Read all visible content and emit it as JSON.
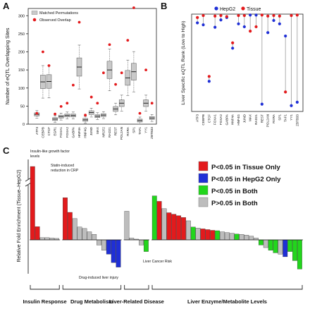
{
  "panels": {
    "a": "A",
    "b": "B",
    "c": "C"
  },
  "chart_data": [
    {
      "type": "scatter",
      "panel": "A",
      "ylabel": "Number of eQTL Overlapping Sites",
      "ylim": [
        0,
        320
      ],
      "yticks": [
        0,
        50,
        100,
        150,
        200,
        250,
        300
      ],
      "categories": [
        "ATF3",
        "CEBPB",
        "CTCF",
        "EGR1",
        "FOXA1",
        "FOXA2",
        "GABPA",
        "HNF4A",
        "HNF4G",
        "JUND",
        "MAX",
        "NR2F2",
        "RAD21",
        "REST",
        "POL2AN",
        "RXRA",
        "SP1",
        "TAF1",
        "YY1",
        "ZBTB33"
      ],
      "legend": [
        "Matched Permutations",
        "Observed Overlap"
      ],
      "permutation_median": [
        27,
        117,
        118,
        14,
        21,
        24,
        24,
        158,
        12,
        32,
        22,
        25,
        150,
        42,
        58,
        128,
        145,
        10,
        58,
        17
      ],
      "observed_overlap": [
        30,
        200,
        162,
        28,
        49,
        58,
        108,
        282,
        25,
        75,
        58,
        142,
        220,
        110,
        142,
        232,
        322,
        30,
        150,
        58
      ],
      "colors": {
        "box": "#c9c9c9",
        "observed": "#e31a1c"
      },
      "grid": false,
      "legend_position": "top-left"
    },
    {
      "type": "scatter",
      "panel": "B",
      "ylabel": "Liver Specific eQTL Rank (Low to High)",
      "categories": [
        "ATF3",
        "CEBPB",
        "CTCF",
        "FOXA1",
        "FOXA2",
        "GABPA",
        "HNF4A",
        "HNF4G",
        "JUND",
        "MAX",
        "RAD21",
        "REST",
        "POL2AN",
        "RXRA",
        "SP1",
        "TAF1",
        "YY1",
        "ZBTB33"
      ],
      "ylim": [
        0,
        20
      ],
      "series": [
        {
          "name": "HepG2",
          "values": [
            18.2,
            17.8,
            6.2,
            17.3,
            18.8,
            19.3,
            13.0,
            18.0,
            17.4,
            19.8,
            19.8,
            1.5,
            16.2,
            18.7,
            18.0,
            15.5,
            1.2,
            1.9
          ]
        },
        {
          "name": "Tissue",
          "values": [
            19.3,
            19.7,
            7.2,
            19.6,
            19.7,
            19.5,
            14.1,
            19.7,
            19.7,
            16.5,
            17.4,
            19.8,
            19.6,
            19.7,
            19.6,
            4.0,
            19.7,
            19.8
          ]
        }
      ],
      "colors": {
        "HepG2": "#1f2fd6",
        "Tissue": "#e31a1c"
      },
      "legend_position": "top"
    },
    {
      "type": "bar",
      "panel": "C",
      "ylabel": "Relative Fold Enrichment (Tissue–HepG2)",
      "legend": [
        {
          "label": "P<0.05 in Tissue Only",
          "color": "#e31a1c"
        },
        {
          "label": "P<0.05 in HepG2 Only",
          "color": "#1f2fd6"
        },
        {
          "label": "P<0.05 in Both",
          "color": "#22d61c"
        },
        {
          "label": "P>0.05 in Both",
          "color": "#bdbdbd"
        }
      ],
      "groups": [
        {
          "name": "Insulin Response",
          "bars": [
            {
              "value": 20.0,
              "cls": "tissue"
            },
            {
              "value": 3.6,
              "cls": "tissue"
            },
            {
              "value": 0.6,
              "cls": "none"
            },
            {
              "value": 0.6,
              "cls": "none"
            },
            {
              "value": 0.5,
              "cls": "none"
            },
            {
              "value": 0.4,
              "cls": "none"
            }
          ]
        },
        {
          "name": "Drug Metabolism",
          "bars": [
            {
              "value": 11.5,
              "cls": "tissue"
            },
            {
              "value": 7.5,
              "cls": "tissue"
            },
            {
              "value": 5.8,
              "cls": "none"
            },
            {
              "value": 3.5,
              "cls": "none"
            },
            {
              "value": 3.1,
              "cls": "none"
            },
            {
              "value": 2.2,
              "cls": "none"
            },
            {
              "value": 1.5,
              "cls": "none"
            },
            {
              "value": -0.8,
              "cls": "none"
            },
            {
              "value": -1.6,
              "cls": "none"
            },
            {
              "value": -2.2,
              "cls": "hepg2"
            },
            {
              "value": -3.5,
              "cls": "hepg2"
            },
            {
              "value": -4.2,
              "cls": "hepg2"
            }
          ]
        },
        {
          "name": "Liver-Related Disease",
          "bars": [
            {
              "value": 7.8,
              "cls": "none"
            },
            {
              "value": 0.5,
              "cls": "none"
            },
            {
              "value": 0.2,
              "cls": "none"
            },
            {
              "value": -0.8,
              "cls": "none"
            },
            {
              "value": -1.8,
              "cls": "both"
            }
          ]
        },
        {
          "name": "Liver Enzyme/Metabolite Levels",
          "bars": [
            {
              "value": 12.0,
              "cls": "both"
            },
            {
              "value": 10.5,
              "cls": "tissue"
            },
            {
              "value": 8.5,
              "cls": "none"
            },
            {
              "value": 7.4,
              "cls": "tissue"
            },
            {
              "value": 7.0,
              "cls": "tissue"
            },
            {
              "value": 6.6,
              "cls": "tissue"
            },
            {
              "value": 6.1,
              "cls": "tissue"
            },
            {
              "value": 5.2,
              "cls": "none"
            },
            {
              "value": 3.5,
              "cls": "both"
            },
            {
              "value": 3.2,
              "cls": "none"
            },
            {
              "value": 3.0,
              "cls": "tissue"
            },
            {
              "value": 2.8,
              "cls": "tissue"
            },
            {
              "value": 2.6,
              "cls": "tissue"
            },
            {
              "value": 2.5,
              "cls": "both"
            },
            {
              "value": 2.2,
              "cls": "none"
            },
            {
              "value": 2.0,
              "cls": "none"
            },
            {
              "value": 1.8,
              "cls": "none"
            },
            {
              "value": 1.6,
              "cls": "both"
            },
            {
              "value": 1.5,
              "cls": "none"
            },
            {
              "value": 1.3,
              "cls": "none"
            },
            {
              "value": 1.0,
              "cls": "none"
            },
            {
              "value": 0.5,
              "cls": "none"
            },
            {
              "value": -0.8,
              "cls": "both"
            },
            {
              "value": -1.2,
              "cls": "none"
            },
            {
              "value": -1.6,
              "cls": "both"
            },
            {
              "value": -2.0,
              "cls": "both"
            },
            {
              "value": -2.2,
              "cls": "none"
            },
            {
              "value": -2.6,
              "cls": "hepg2"
            },
            {
              "value": -1.8,
              "cls": "both"
            },
            {
              "value": -3.2,
              "cls": "both"
            },
            {
              "value": -4.5,
              "cls": "both"
            }
          ]
        }
      ],
      "annotations": [
        "Insulin-like growth factor levels",
        "Statin-induced reduction in CRP",
        "Drug-induced liver injury",
        "Liver Cancer Risk"
      ],
      "ylim": [
        -5,
        20
      ],
      "axis_break": true
    }
  ]
}
